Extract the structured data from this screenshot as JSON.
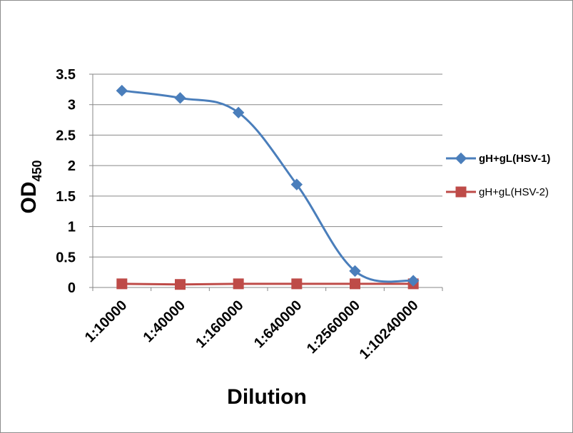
{
  "chart_data": {
    "type": "line",
    "title": "",
    "xlabel": "Dilution",
    "ylabel": "OD",
    "ylabel_subscript": "450",
    "categories": [
      "1:10000",
      "1:40000",
      "1:160000",
      "1:640000",
      "1:2560000",
      "1:10240000"
    ],
    "ylim": [
      0,
      3.5
    ],
    "yticks": [
      "0",
      "0.5",
      "1",
      "1.5",
      "2",
      "2.5",
      "3",
      "3.5"
    ],
    "grid": "horizontal",
    "legend_position": "right",
    "series": [
      {
        "name": "gH+gL(HSV-1)",
        "values": [
          3.23,
          3.11,
          2.87,
          1.69,
          0.27,
          0.11
        ],
        "color": "#4a7ebb",
        "marker": "diamond",
        "smooth": true
      },
      {
        "name": "gH+gL(HSV-2)",
        "values": [
          0.06,
          0.05,
          0.06,
          0.06,
          0.06,
          0.06
        ],
        "color": "#be4b48",
        "marker": "square",
        "smooth": false
      }
    ]
  }
}
